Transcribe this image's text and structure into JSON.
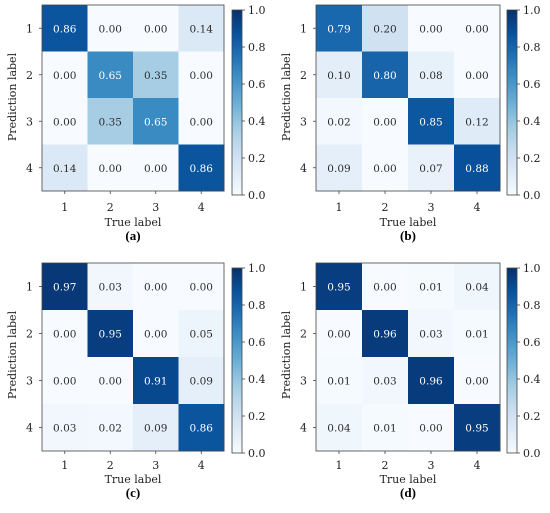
{
  "chart_data": [
    {
      "type": "heatmap",
      "panel_label": "(a)",
      "xlabel": "True label",
      "ylabel": "Prediction label",
      "x_categories": [
        "1",
        "2",
        "3",
        "4"
      ],
      "y_categories": [
        "1",
        "2",
        "3",
        "4"
      ],
      "values": [
        [
          0.86,
          0.0,
          0.0,
          0.14
        ],
        [
          0.0,
          0.65,
          0.35,
          0.0
        ],
        [
          0.0,
          0.35,
          0.65,
          0.0
        ],
        [
          0.14,
          0.0,
          0.0,
          0.86
        ]
      ],
      "colorbar_range": [
        0.0,
        1.0
      ],
      "colorbar_ticks": [
        "0.0",
        "0.2",
        "0.4",
        "0.6",
        "0.8",
        "1.0"
      ],
      "colormap": "Blues"
    },
    {
      "type": "heatmap",
      "panel_label": "(b)",
      "xlabel": "True label",
      "ylabel": "Prediction label",
      "x_categories": [
        "1",
        "2",
        "3",
        "4"
      ],
      "y_categories": [
        "1",
        "2",
        "3",
        "4"
      ],
      "values": [
        [
          0.79,
          0.2,
          0.0,
          0.0
        ],
        [
          0.1,
          0.8,
          0.08,
          0.0
        ],
        [
          0.02,
          0.0,
          0.85,
          0.12
        ],
        [
          0.09,
          0.0,
          0.07,
          0.88
        ]
      ],
      "colorbar_range": [
        0.0,
        1.0
      ],
      "colorbar_ticks": [
        "0.0",
        "0.2",
        "0.4",
        "0.6",
        "0.8",
        "1.0"
      ],
      "colormap": "Blues"
    },
    {
      "type": "heatmap",
      "panel_label": "(c)",
      "xlabel": "True label",
      "ylabel": "Prediction label",
      "x_categories": [
        "1",
        "2",
        "3",
        "4"
      ],
      "y_categories": [
        "1",
        "2",
        "3",
        "4"
      ],
      "values": [
        [
          0.97,
          0.03,
          0.0,
          0.0
        ],
        [
          0.0,
          0.95,
          0.0,
          0.05
        ],
        [
          0.0,
          0.0,
          0.91,
          0.09
        ],
        [
          0.03,
          0.02,
          0.09,
          0.86
        ]
      ],
      "colorbar_range": [
        0.0,
        1.0
      ],
      "colorbar_ticks": [
        "0.0",
        "0.2",
        "0.4",
        "0.6",
        "0.8",
        "1.0"
      ],
      "colormap": "Blues"
    },
    {
      "type": "heatmap",
      "panel_label": "(d)",
      "xlabel": "True label",
      "ylabel": "Prediction label",
      "x_categories": [
        "1",
        "2",
        "3",
        "4"
      ],
      "y_categories": [
        "1",
        "2",
        "3",
        "4"
      ],
      "values": [
        [
          0.95,
          0.0,
          0.01,
          0.04
        ],
        [
          0.0,
          0.96,
          0.03,
          0.01
        ],
        [
          0.01,
          0.03,
          0.96,
          0.0
        ],
        [
          0.04,
          0.01,
          0.0,
          0.95
        ]
      ],
      "colorbar_range": [
        0.0,
        1.0
      ],
      "colorbar_ticks": [
        "0.0",
        "0.2",
        "0.4",
        "0.6",
        "0.8",
        "1.0"
      ],
      "colormap": "Blues"
    }
  ]
}
